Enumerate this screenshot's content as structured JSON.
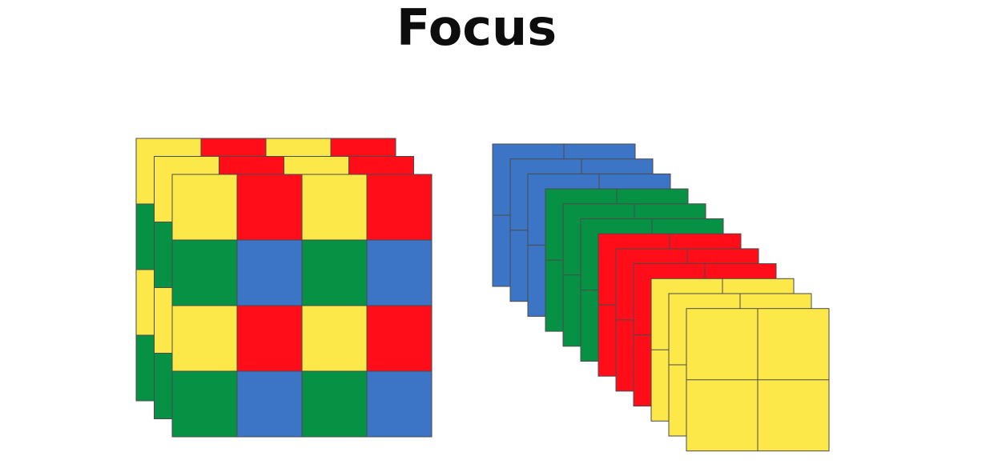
{
  "title": "Focus",
  "colors": {
    "yellow": "#fde84a",
    "red": "#ff0d19",
    "green": "#079145",
    "blue": "#3d75c6",
    "line": "#4a4a4a"
  },
  "left_stack": {
    "layers": 3,
    "grid": [
      [
        "yellow",
        "red",
        "yellow",
        "red"
      ],
      [
        "green",
        "blue",
        "green",
        "blue"
      ],
      [
        "yellow",
        "red",
        "yellow",
        "red"
      ],
      [
        "green",
        "blue",
        "green",
        "blue"
      ]
    ]
  },
  "right_stack": {
    "layers": [
      {
        "color": "blue"
      },
      {
        "color": "blue"
      },
      {
        "color": "blue"
      },
      {
        "color": "green"
      },
      {
        "color": "green"
      },
      {
        "color": "green"
      },
      {
        "color": "red"
      },
      {
        "color": "red"
      },
      {
        "color": "red"
      },
      {
        "color": "yellow"
      },
      {
        "color": "yellow"
      },
      {
        "color": "yellow"
      }
    ],
    "cells_per_side": 2
  }
}
